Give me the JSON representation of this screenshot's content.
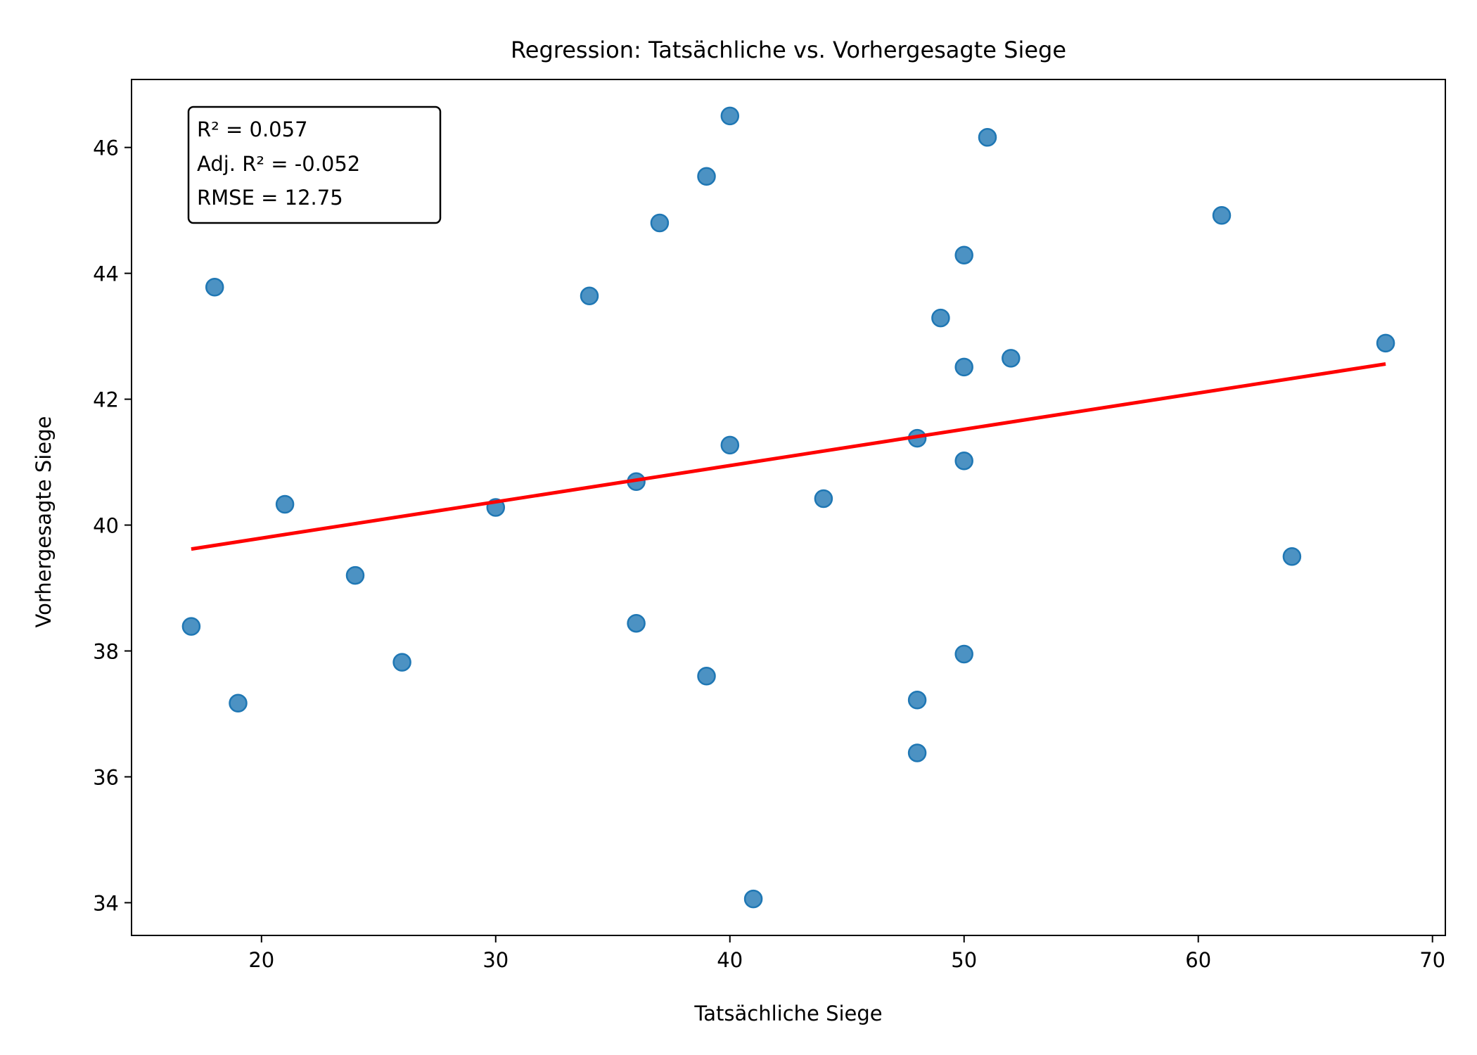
{
  "chart_data": {
    "type": "scatter",
    "title": "Regression: Tatsächliche vs. Vorhergesagte Siege",
    "xlabel": "Tatsächliche Siege",
    "ylabel": "Vorhergesagte Siege",
    "xlim": [
      14.45,
      70.55
    ],
    "ylim": [
      33.48,
      47.08
    ],
    "x_ticks": [
      20,
      30,
      40,
      50,
      60,
      70
    ],
    "y_ticks": [
      34,
      36,
      38,
      40,
      42,
      44,
      46
    ],
    "x_tick_labels": [
      "20",
      "30",
      "40",
      "50",
      "60",
      "70"
    ],
    "y_tick_labels": [
      "34",
      "36",
      "38",
      "40",
      "42",
      "44",
      "46"
    ],
    "grid": false,
    "points": [
      {
        "x": 17,
        "y": 38.39
      },
      {
        "x": 18,
        "y": 43.78
      },
      {
        "x": 19,
        "y": 37.17
      },
      {
        "x": 21,
        "y": 40.33
      },
      {
        "x": 24,
        "y": 39.2
      },
      {
        "x": 26,
        "y": 37.82
      },
      {
        "x": 30,
        "y": 40.28
      },
      {
        "x": 34,
        "y": 43.64
      },
      {
        "x": 36,
        "y": 40.69
      },
      {
        "x": 36,
        "y": 38.44
      },
      {
        "x": 37,
        "y": 44.8
      },
      {
        "x": 39,
        "y": 45.54
      },
      {
        "x": 39,
        "y": 37.6
      },
      {
        "x": 40,
        "y": 46.5
      },
      {
        "x": 40,
        "y": 41.27
      },
      {
        "x": 41,
        "y": 34.06
      },
      {
        "x": 44,
        "y": 40.42
      },
      {
        "x": 48,
        "y": 41.38
      },
      {
        "x": 48,
        "y": 37.22
      },
      {
        "x": 48,
        "y": 36.38
      },
      {
        "x": 49,
        "y": 43.29
      },
      {
        "x": 50,
        "y": 44.29
      },
      {
        "x": 50,
        "y": 42.51
      },
      {
        "x": 50,
        "y": 41.02
      },
      {
        "x": 50,
        "y": 37.95
      },
      {
        "x": 51,
        "y": 46.16
      },
      {
        "x": 52,
        "y": 42.65
      },
      {
        "x": 61,
        "y": 44.92
      },
      {
        "x": 64,
        "y": 39.5
      },
      {
        "x": 68,
        "y": 42.89
      }
    ],
    "regression_line": {
      "x": [
        17,
        68
      ],
      "y": [
        39.62,
        42.56
      ]
    },
    "stats_box": {
      "lines": [
        "R² = 0.057",
        "Adj. R² = -0.052",
        "RMSE = 12.75"
      ],
      "position": "top-left"
    },
    "colors": {
      "points": "#1f77b4",
      "regression_line": "#ff0000",
      "axes": "#000000",
      "background": "#ffffff"
    }
  }
}
